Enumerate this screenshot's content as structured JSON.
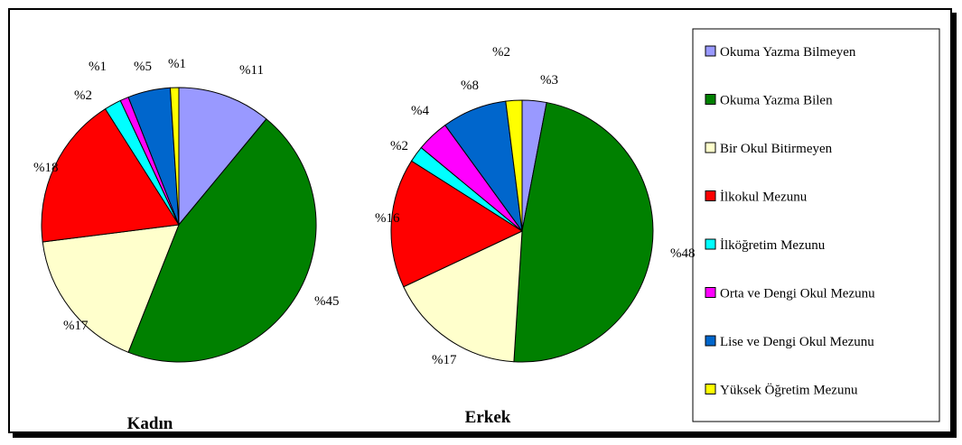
{
  "chart_data": [
    {
      "type": "pie",
      "title": "Kadın",
      "categories": [
        "Okuma Yazma Bilmeyen",
        "Okuma Yazma Bilen",
        "Bir Okul Bitirmeyen",
        "İlkokul Mezunu",
        "İlköğretim Mezunu",
        "Orta ve Dengi Okul Mezunu",
        "Lise ve Dengi Okul Mezunu",
        "Yüksek Öğretim Mezunu"
      ],
      "values": [
        11,
        45,
        17,
        18,
        2,
        1,
        5,
        1
      ],
      "labels": [
        "%11",
        "%45",
        "%17",
        "%18",
        "%2",
        "%1",
        "%5",
        "%1"
      ]
    },
    {
      "type": "pie",
      "title": "Erkek",
      "categories": [
        "Okuma Yazma Bilmeyen",
        "Okuma Yazma Bilen",
        "Bir Okul Bitirmeyen",
        "İlkokul Mezunu",
        "İlköğretim Mezunu",
        "Orta ve Dengi Okul Mezunu",
        "Lise ve Dengi Okul Mezunu",
        "Yüksek Öğretim Mezunu"
      ],
      "values": [
        3,
        48,
        17,
        16,
        2,
        4,
        8,
        2
      ],
      "labels": [
        "%3",
        "%48",
        "%17",
        "%16",
        "%2",
        "%4",
        "%8",
        "%2"
      ]
    }
  ],
  "legend": {
    "placement": "right",
    "items": [
      {
        "label": "Okuma Yazma Bilmeyen",
        "color": "#9999FF"
      },
      {
        "label": "Okuma Yazma Bilen",
        "color": "#008000"
      },
      {
        "label": "Bir Okul Bitirmeyen",
        "color": "#FFFFCC"
      },
      {
        "label": "İlkokul Mezunu",
        "color": "#FF0000"
      },
      {
        "label": "İlköğretim Mezunu",
        "color": "#00FFFF"
      },
      {
        "label": "Orta ve Dengi Okul Mezunu",
        "color": "#FF00FF"
      },
      {
        "label": "Lise ve Dengi Okul Mezunu",
        "color": "#0066CC"
      },
      {
        "label": "Yüksek Öğretim Mezunu",
        "color": "#FFFF00"
      }
    ]
  }
}
